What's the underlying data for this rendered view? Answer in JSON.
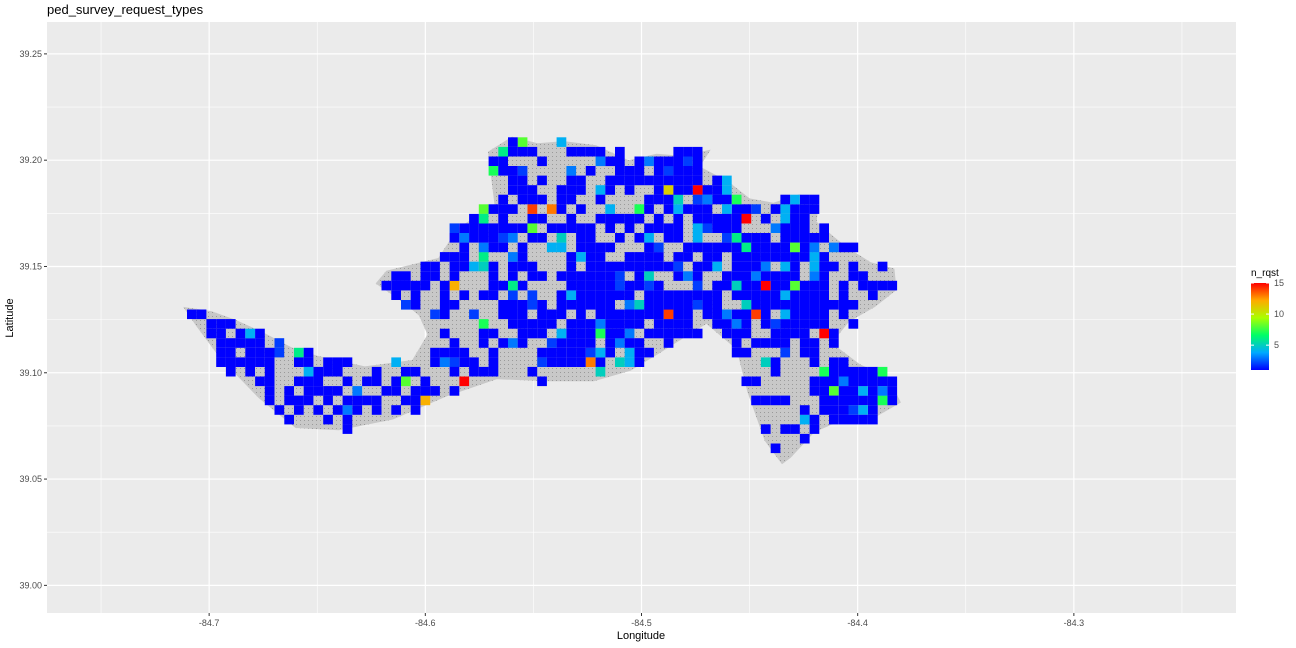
{
  "chart_data": {
    "type": "heatmap",
    "title": "ped_survey_request_types",
    "xlabel": "Longitude",
    "ylabel": "Latitude",
    "xlim": [
      -84.775,
      -84.225
    ],
    "ylim": [
      38.987,
      39.265
    ],
    "x_ticks": [
      -84.7,
      -84.6,
      -84.5,
      -84.4,
      -84.3
    ],
    "x_tick_labels": [
      "-84.7",
      "-84.6",
      "-84.5",
      "-84.4",
      "-84.3"
    ],
    "y_ticks": [
      39.0,
      39.05,
      39.1,
      39.15,
      39.2,
      39.25
    ],
    "y_tick_labels": [
      "39.00",
      "39.05",
      "39.10",
      "39.15",
      "39.20",
      "39.25"
    ],
    "grid": true,
    "legend": {
      "title": "n_rqst",
      "placement": "right",
      "range": [
        1,
        15
      ],
      "breaks": [
        5,
        10,
        15
      ],
      "break_labels": [
        "5",
        "10",
        "15"
      ],
      "colors": [
        "#0000ff",
        "#00aaff",
        "#00ff66",
        "#aaff00",
        "#ffaa00",
        "#ff0000"
      ]
    },
    "colors": {
      "panel": "#ebebeb",
      "gridline": "#ffffff",
      "boundary_fill": "#c8c8c8"
    },
    "boundary": [
      [
        -84.712,
        39.131
      ],
      [
        -84.699,
        39.129
      ],
      [
        -84.688,
        39.125
      ],
      [
        -84.675,
        39.119
      ],
      [
        -84.662,
        39.112
      ],
      [
        -84.65,
        39.108
      ],
      [
        -84.628,
        39.103
      ],
      [
        -84.606,
        39.106
      ],
      [
        -84.599,
        39.118
      ],
      [
        -84.603,
        39.127
      ],
      [
        -84.61,
        39.133
      ],
      [
        -84.623,
        39.142
      ],
      [
        -84.618,
        39.148
      ],
      [
        -84.594,
        39.154
      ],
      [
        -84.585,
        39.168
      ],
      [
        -84.568,
        39.179
      ],
      [
        -84.571,
        39.204
      ],
      [
        -84.56,
        39.211
      ],
      [
        -84.548,
        39.208
      ],
      [
        -84.536,
        39.209
      ],
      [
        -84.521,
        39.207
      ],
      [
        -84.506,
        39.2
      ],
      [
        -84.493,
        39.203
      ],
      [
        -84.481,
        39.202
      ],
      [
        -84.468,
        39.205
      ],
      [
        -84.473,
        39.197
      ],
      [
        -84.46,
        39.19
      ],
      [
        -84.45,
        39.182
      ],
      [
        -84.439,
        39.18
      ],
      [
        -84.427,
        39.184
      ],
      [
        -84.418,
        39.18
      ],
      [
        -84.419,
        39.171
      ],
      [
        -84.411,
        39.164
      ],
      [
        -84.405,
        39.159
      ],
      [
        -84.394,
        39.152
      ],
      [
        -84.383,
        39.149
      ],
      [
        -84.382,
        39.139
      ],
      [
        -84.392,
        39.131
      ],
      [
        -84.404,
        39.124
      ],
      [
        -84.412,
        39.114
      ],
      [
        -84.399,
        39.104
      ],
      [
        -84.386,
        39.098
      ],
      [
        -84.38,
        39.086
      ],
      [
        -84.392,
        39.079
      ],
      [
        -84.409,
        39.077
      ],
      [
        -84.42,
        39.072
      ],
      [
        -84.431,
        39.06
      ],
      [
        -84.435,
        39.057
      ],
      [
        -84.443,
        39.068
      ],
      [
        -84.451,
        39.091
      ],
      [
        -84.456,
        39.111
      ],
      [
        -84.47,
        39.123
      ],
      [
        -84.478,
        39.118
      ],
      [
        -84.492,
        39.109
      ],
      [
        -84.505,
        39.101
      ],
      [
        -84.522,
        39.096
      ],
      [
        -84.543,
        39.096
      ],
      [
        -84.567,
        39.097
      ],
      [
        -84.59,
        39.089
      ],
      [
        -84.615,
        39.078
      ],
      [
        -84.64,
        39.073
      ],
      [
        -84.66,
        39.074
      ],
      [
        -84.677,
        39.088
      ],
      [
        -84.695,
        39.107
      ],
      [
        -84.706,
        39.122
      ]
    ],
    "hotspots": [
      {
        "x": -84.51,
        "y": 39.11,
        "s": 0.02
      },
      {
        "x": -84.515,
        "y": 39.125,
        "s": 0.015
      },
      {
        "x": -84.54,
        "y": 39.15,
        "s": 0.025
      },
      {
        "x": -84.435,
        "y": 39.145,
        "s": 0.012
      },
      {
        "x": -84.425,
        "y": 39.13,
        "s": 0.01
      },
      {
        "x": -84.4,
        "y": 39.09,
        "s": 0.01
      },
      {
        "x": -84.455,
        "y": 39.135,
        "s": 0.02
      },
      {
        "x": -84.57,
        "y": 39.18,
        "s": 0.02
      },
      {
        "x": -84.49,
        "y": 39.155,
        "s": 0.02
      },
      {
        "x": -84.62,
        "y": 39.12,
        "s": 0.025
      },
      {
        "x": -84.68,
        "y": 39.11,
        "s": 0.02
      },
      {
        "x": -84.48,
        "y": 39.195,
        "s": 0.012
      },
      {
        "x": -84.42,
        "y": 39.175,
        "s": 0.01
      }
    ]
  }
}
